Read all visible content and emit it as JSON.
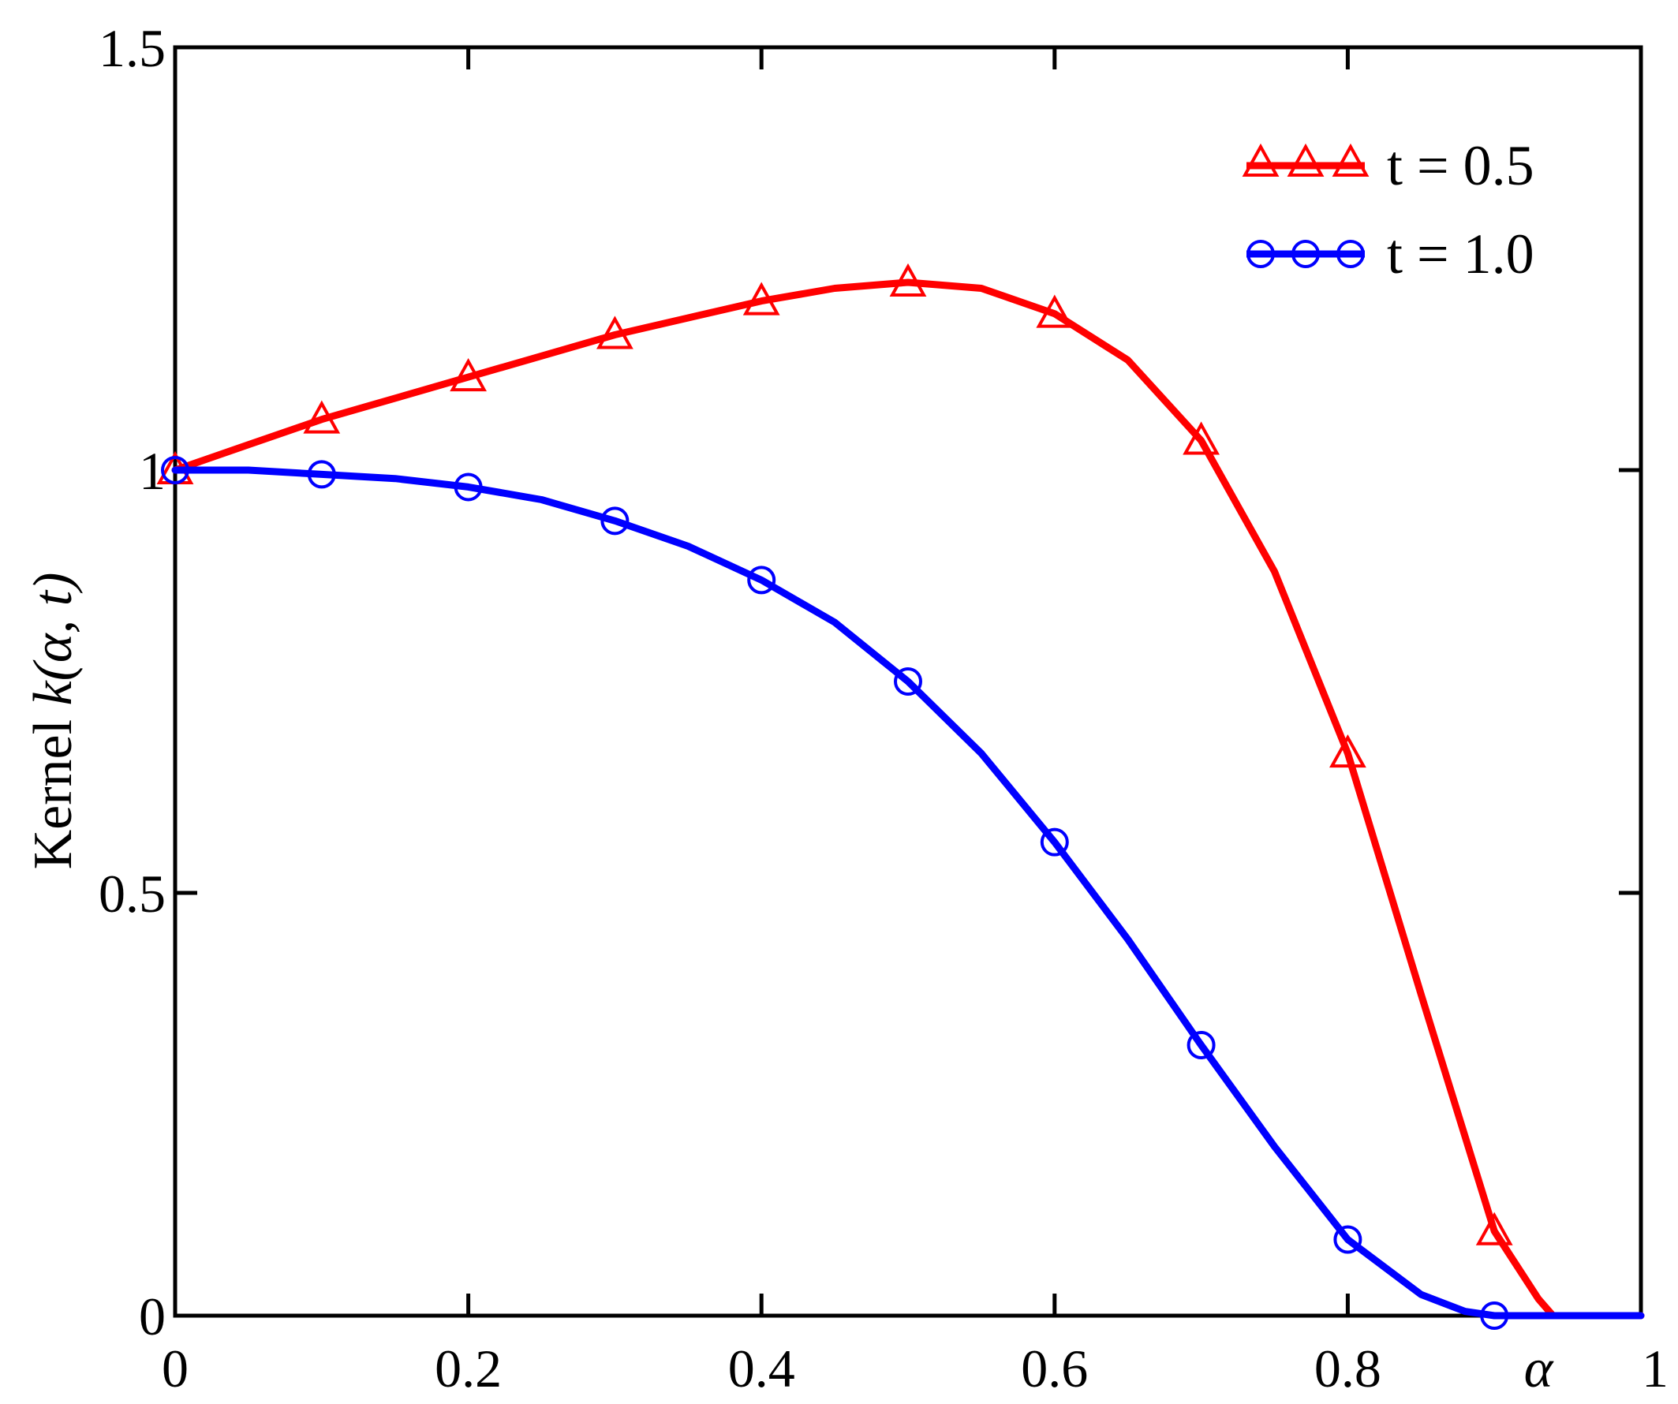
{
  "chart_data": {
    "type": "line",
    "xlabel": "α",
    "ylabel_prefix": "Kernel ",
    "ylabel_math": "k(α, t)",
    "xlim": [
      0,
      1
    ],
    "ylim": [
      0,
      1.5
    ],
    "xticks": [
      0,
      0.2,
      0.4,
      0.6,
      0.8,
      1
    ],
    "xtick_labels": [
      "0",
      "0.2",
      "0.4",
      "0.6",
      "0.8",
      "1"
    ],
    "yticks": [
      0,
      0.5,
      1,
      1.5
    ],
    "ytick_labels": [
      "0",
      "0.5",
      "1",
      "1.5"
    ],
    "grid": false,
    "legend_position": "top-right",
    "series": [
      {
        "name": "t = 0.5",
        "color": "#ff0000",
        "marker": "triangle",
        "x": [
          0,
          0.05,
          0.1,
          0.15,
          0.2,
          0.25,
          0.3,
          0.35,
          0.4,
          0.45,
          0.5,
          0.55,
          0.6,
          0.65,
          0.7,
          0.75,
          0.8,
          0.85,
          0.9,
          0.93,
          0.94,
          1.0
        ],
        "y": [
          1.0,
          1.03,
          1.06,
          1.085,
          1.11,
          1.135,
          1.16,
          1.18,
          1.2,
          1.215,
          1.222,
          1.215,
          1.185,
          1.13,
          1.035,
          0.88,
          0.665,
          0.38,
          0.1,
          0.02,
          0.0,
          0.0
        ],
        "marker_x": [
          0,
          0.1,
          0.2,
          0.3,
          0.4,
          0.5,
          0.6,
          0.7,
          0.8,
          0.9
        ],
        "marker_y": [
          1.0,
          1.06,
          1.11,
          1.16,
          1.2,
          1.222,
          1.185,
          1.035,
          0.665,
          0.1
        ]
      },
      {
        "name": "t = 1.0",
        "color": "#0000ff",
        "marker": "circle",
        "x": [
          0,
          0.05,
          0.1,
          0.15,
          0.2,
          0.25,
          0.3,
          0.35,
          0.4,
          0.45,
          0.5,
          0.55,
          0.6,
          0.65,
          0.7,
          0.75,
          0.8,
          0.85,
          0.88,
          0.9,
          0.95,
          1.0
        ],
        "y": [
          1.0,
          1.0,
          0.995,
          0.99,
          0.98,
          0.965,
          0.94,
          0.91,
          0.87,
          0.82,
          0.75,
          0.665,
          0.56,
          0.445,
          0.32,
          0.2,
          0.09,
          0.025,
          0.005,
          0.0,
          0.0,
          0.0
        ],
        "marker_x": [
          0,
          0.1,
          0.2,
          0.3,
          0.4,
          0.5,
          0.6,
          0.7,
          0.8,
          0.9
        ],
        "marker_y": [
          1.0,
          0.995,
          0.98,
          0.94,
          0.87,
          0.75,
          0.56,
          0.32,
          0.09,
          0.0
        ]
      }
    ]
  }
}
